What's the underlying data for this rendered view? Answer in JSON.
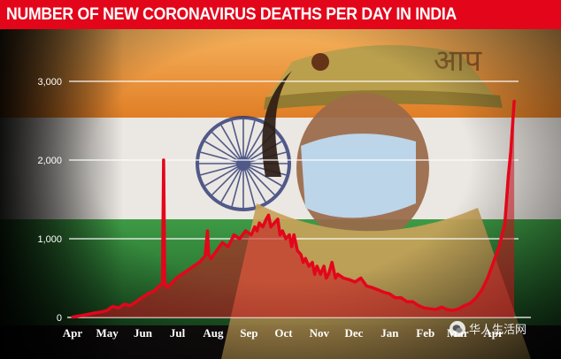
{
  "title": "NUMBER OF NEW CORONAVIRUS DEATHS PER DAY IN INDIA",
  "watermark": "华人生活网",
  "colors": {
    "title_bg": "#e3061b",
    "line": "#e3061b",
    "area": "#c8101e",
    "grid": "#ffffff",
    "flag_saffron": "#f29a2e",
    "flag_white": "#f2f2f2",
    "flag_green": "#2f8a3a",
    "chakra": "#1d2a6b"
  },
  "chart_data": {
    "type": "area",
    "title": "NUMBER OF NEW CORONAVIRUS DEATHS PER DAY IN INDIA",
    "xlabel": "",
    "ylabel": "",
    "ylim": [
      0,
      3000
    ],
    "xlim": [
      0,
      396
    ],
    "grid": true,
    "y_ticks": [
      {
        "value": 0,
        "label": "0"
      },
      {
        "value": 1000,
        "label": "1,000"
      },
      {
        "value": 2000,
        "label": "2,000"
      },
      {
        "value": 3000,
        "label": "3,000"
      }
    ],
    "x_ticks": [
      {
        "value": 0,
        "label": "Apr"
      },
      {
        "value": 30,
        "label": "May"
      },
      {
        "value": 61,
        "label": "Jun"
      },
      {
        "value": 91,
        "label": "Jul"
      },
      {
        "value": 122,
        "label": "Aug"
      },
      {
        "value": 153,
        "label": "Sep"
      },
      {
        "value": 183,
        "label": "Oct"
      },
      {
        "value": 214,
        "label": "Nov"
      },
      {
        "value": 244,
        "label": "Dec"
      },
      {
        "value": 275,
        "label": "Jan"
      },
      {
        "value": 306,
        "label": "Feb"
      },
      {
        "value": 334,
        "label": "Mar"
      },
      {
        "value": 365,
        "label": "Apr"
      }
    ],
    "x": [
      0,
      10,
      20,
      25,
      30,
      35,
      40,
      45,
      50,
      55,
      60,
      62,
      65,
      70,
      72,
      75,
      78,
      79,
      80,
      82,
      85,
      90,
      95,
      100,
      105,
      110,
      115,
      117,
      118,
      120,
      125,
      130,
      135,
      140,
      145,
      150,
      155,
      158,
      160,
      162,
      165,
      168,
      170,
      172,
      175,
      178,
      180,
      182,
      185,
      188,
      190,
      192,
      195,
      198,
      200,
      202,
      205,
      208,
      210,
      212,
      215,
      218,
      220,
      222,
      225,
      228,
      230,
      235,
      240,
      245,
      250,
      255,
      260,
      265,
      270,
      275,
      280,
      285,
      290,
      295,
      300,
      305,
      310,
      315,
      320,
      325,
      330,
      335,
      340,
      345,
      350,
      355,
      360,
      365,
      370,
      375,
      378,
      380,
      383
    ],
    "series": [
      {
        "values": [
          5,
          30,
          60,
          70,
          90,
          140,
          120,
          170,
          150,
          200,
          250,
          270,
          300,
          330,
          350,
          400,
          420,
          2000,
          450,
          380,
          420,
          500,
          550,
          600,
          650,
          700,
          780,
          1100,
          800,
          750,
          850,
          950,
          900,
          1050,
          1000,
          1100,
          1050,
          1150,
          1100,
          1200,
          1150,
          1250,
          1300,
          1150,
          1200,
          1250,
          1050,
          1100,
          1000,
          1050,
          900,
          1050,
          850,
          800,
          700,
          750,
          650,
          700,
          550,
          650,
          550,
          650,
          500,
          550,
          700,
          500,
          550,
          500,
          480,
          450,
          500,
          400,
          380,
          350,
          320,
          300,
          250,
          250,
          200,
          200,
          150,
          120,
          110,
          100,
          130,
          100,
          90,
          110,
          150,
          180,
          250,
          350,
          500,
          700,
          900,
          1200,
          1800,
          2100,
          2750
        ]
      }
    ]
  }
}
